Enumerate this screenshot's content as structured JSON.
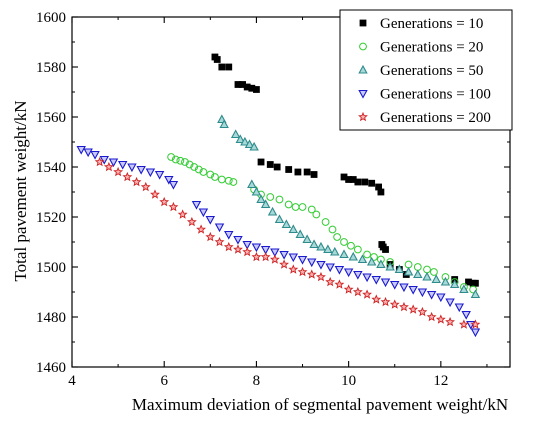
{
  "chart_data": {
    "type": "scatter",
    "title": "",
    "xlabel": "Maximum deviation of segmental pavement weight/kN",
    "ylabel": "Total pavement weight/kN",
    "xlim": [
      4,
      13.5
    ],
    "ylim": [
      1460,
      1600
    ],
    "xticks": [
      4,
      6,
      8,
      10,
      12
    ],
    "yticks": [
      1460,
      1480,
      1500,
      1520,
      1540,
      1560,
      1580,
      1600
    ],
    "grid": false,
    "legend_position": "top-right",
    "series": [
      {
        "name": "Generations = 10",
        "marker": "square",
        "color": "#000000",
        "points": [
          [
            7.1,
            1584
          ],
          [
            7.15,
            1583
          ],
          [
            7.25,
            1580
          ],
          [
            7.4,
            1580
          ],
          [
            7.6,
            1573
          ],
          [
            7.7,
            1573
          ],
          [
            7.8,
            1572
          ],
          [
            7.9,
            1571.5
          ],
          [
            8.0,
            1571
          ],
          [
            8.1,
            1542
          ],
          [
            8.3,
            1541
          ],
          [
            8.45,
            1540
          ],
          [
            8.7,
            1539
          ],
          [
            8.9,
            1538
          ],
          [
            9.1,
            1538
          ],
          [
            9.25,
            1537
          ],
          [
            9.9,
            1536
          ],
          [
            10.0,
            1535
          ],
          [
            10.1,
            1535
          ],
          [
            10.2,
            1534
          ],
          [
            10.35,
            1534
          ],
          [
            10.5,
            1533.5
          ],
          [
            10.65,
            1532
          ],
          [
            10.7,
            1530
          ],
          [
            10.72,
            1509
          ],
          [
            10.75,
            1508
          ],
          [
            10.8,
            1507
          ],
          [
            10.9,
            1501
          ],
          [
            11.1,
            1499
          ],
          [
            11.25,
            1497
          ],
          [
            12.3,
            1495
          ],
          [
            12.6,
            1494
          ],
          [
            12.7,
            1493.5
          ],
          [
            12.75,
            1493.5
          ]
        ]
      },
      {
        "name": "Generations = 20",
        "marker": "circle",
        "color": "#33cc33",
        "points": [
          [
            6.15,
            1544
          ],
          [
            6.25,
            1543
          ],
          [
            6.35,
            1542.5
          ],
          [
            6.45,
            1542
          ],
          [
            6.55,
            1541
          ],
          [
            6.65,
            1540
          ],
          [
            6.75,
            1539
          ],
          [
            6.85,
            1538
          ],
          [
            7.0,
            1537
          ],
          [
            7.1,
            1536
          ],
          [
            7.25,
            1535
          ],
          [
            7.4,
            1534.5
          ],
          [
            7.5,
            1534
          ],
          [
            7.95,
            1531
          ],
          [
            8.1,
            1529
          ],
          [
            8.3,
            1528
          ],
          [
            8.5,
            1527
          ],
          [
            8.7,
            1525
          ],
          [
            8.85,
            1524
          ],
          [
            9.0,
            1524
          ],
          [
            9.2,
            1523
          ],
          [
            9.3,
            1521
          ],
          [
            9.5,
            1518
          ],
          [
            9.65,
            1515
          ],
          [
            9.75,
            1512
          ],
          [
            9.9,
            1510
          ],
          [
            10.05,
            1508.5
          ],
          [
            10.2,
            1507
          ],
          [
            10.4,
            1505
          ],
          [
            10.55,
            1504
          ],
          [
            10.7,
            1503
          ],
          [
            10.9,
            1502
          ],
          [
            11.3,
            1501
          ],
          [
            11.5,
            1500
          ],
          [
            11.7,
            1499
          ],
          [
            11.85,
            1498
          ],
          [
            12.1,
            1496
          ],
          [
            12.3,
            1494
          ],
          [
            12.5,
            1492
          ],
          [
            12.7,
            1491
          ]
        ]
      },
      {
        "name": "Generations = 50",
        "marker": "triangle-up",
        "color": "#2e8b8b",
        "points": [
          [
            7.25,
            1559
          ],
          [
            7.3,
            1557
          ],
          [
            7.55,
            1553
          ],
          [
            7.65,
            1551
          ],
          [
            7.75,
            1550
          ],
          [
            7.85,
            1549
          ],
          [
            7.95,
            1548
          ],
          [
            7.9,
            1533
          ],
          [
            8.0,
            1530
          ],
          [
            8.1,
            1527
          ],
          [
            8.2,
            1525
          ],
          [
            8.35,
            1522
          ],
          [
            8.5,
            1519
          ],
          [
            8.65,
            1517
          ],
          [
            8.8,
            1515
          ],
          [
            8.95,
            1513
          ],
          [
            9.1,
            1511
          ],
          [
            9.25,
            1509
          ],
          [
            9.4,
            1508
          ],
          [
            9.55,
            1507
          ],
          [
            9.7,
            1506
          ],
          [
            9.9,
            1505
          ],
          [
            10.1,
            1504
          ],
          [
            10.3,
            1503
          ],
          [
            10.5,
            1502
          ],
          [
            10.7,
            1501
          ],
          [
            10.9,
            1500
          ],
          [
            11.1,
            1499
          ],
          [
            11.3,
            1498
          ],
          [
            11.5,
            1497
          ],
          [
            11.7,
            1496
          ],
          [
            11.9,
            1495
          ],
          [
            12.1,
            1494
          ],
          [
            12.3,
            1493
          ],
          [
            12.5,
            1491
          ],
          [
            12.75,
            1489
          ]
        ]
      },
      {
        "name": "Generations = 100",
        "marker": "triangle-down",
        "color": "#1a1acc",
        "points": [
          [
            4.2,
            1547
          ],
          [
            4.35,
            1546
          ],
          [
            4.5,
            1545
          ],
          [
            4.7,
            1543
          ],
          [
            4.9,
            1542
          ],
          [
            5.1,
            1541
          ],
          [
            5.3,
            1540
          ],
          [
            5.5,
            1539
          ],
          [
            5.7,
            1538
          ],
          [
            5.9,
            1537
          ],
          [
            6.1,
            1535
          ],
          [
            6.2,
            1533
          ],
          [
            6.7,
            1525
          ],
          [
            6.85,
            1522
          ],
          [
            7.0,
            1519
          ],
          [
            7.2,
            1516
          ],
          [
            7.4,
            1513
          ],
          [
            7.6,
            1511
          ],
          [
            7.8,
            1509
          ],
          [
            8.0,
            1508
          ],
          [
            8.2,
            1507
          ],
          [
            8.4,
            1506
          ],
          [
            8.6,
            1505
          ],
          [
            8.8,
            1504
          ],
          [
            9.0,
            1503
          ],
          [
            9.2,
            1502
          ],
          [
            9.4,
            1501
          ],
          [
            9.6,
            1500
          ],
          [
            9.8,
            1499
          ],
          [
            10.0,
            1498
          ],
          [
            10.2,
            1497
          ],
          [
            10.4,
            1496
          ],
          [
            10.6,
            1495
          ],
          [
            10.8,
            1494
          ],
          [
            11.0,
            1493
          ],
          [
            11.2,
            1492
          ],
          [
            11.4,
            1491
          ],
          [
            11.6,
            1490
          ],
          [
            11.8,
            1489
          ],
          [
            12.0,
            1488
          ],
          [
            12.2,
            1486
          ],
          [
            12.4,
            1484
          ],
          [
            12.55,
            1481
          ],
          [
            12.65,
            1477
          ],
          [
            12.75,
            1474
          ]
        ]
      },
      {
        "name": "Generations = 200",
        "marker": "star",
        "color": "#cc2222",
        "points": [
          [
            4.6,
            1542
          ],
          [
            4.8,
            1540
          ],
          [
            5.0,
            1538
          ],
          [
            5.2,
            1536
          ],
          [
            5.4,
            1534
          ],
          [
            5.6,
            1532
          ],
          [
            5.8,
            1529
          ],
          [
            6.0,
            1526
          ],
          [
            6.2,
            1524
          ],
          [
            6.4,
            1521
          ],
          [
            6.6,
            1518
          ],
          [
            6.8,
            1515
          ],
          [
            7.0,
            1512
          ],
          [
            7.2,
            1510
          ],
          [
            7.4,
            1508
          ],
          [
            7.6,
            1507
          ],
          [
            7.8,
            1506
          ],
          [
            8.0,
            1504
          ],
          [
            8.2,
            1504
          ],
          [
            8.4,
            1503
          ],
          [
            8.6,
            1501
          ],
          [
            8.8,
            1499
          ],
          [
            9.0,
            1498
          ],
          [
            9.2,
            1497
          ],
          [
            9.4,
            1496
          ],
          [
            9.6,
            1494
          ],
          [
            9.8,
            1493
          ],
          [
            10.0,
            1491
          ],
          [
            10.2,
            1490
          ],
          [
            10.4,
            1489
          ],
          [
            10.6,
            1487
          ],
          [
            10.8,
            1486
          ],
          [
            11.0,
            1485
          ],
          [
            11.2,
            1484
          ],
          [
            11.4,
            1483
          ],
          [
            11.6,
            1482
          ],
          [
            11.8,
            1480
          ],
          [
            12.0,
            1479
          ],
          [
            12.2,
            1478
          ],
          [
            12.5,
            1477
          ],
          [
            12.75,
            1477
          ]
        ]
      }
    ]
  }
}
